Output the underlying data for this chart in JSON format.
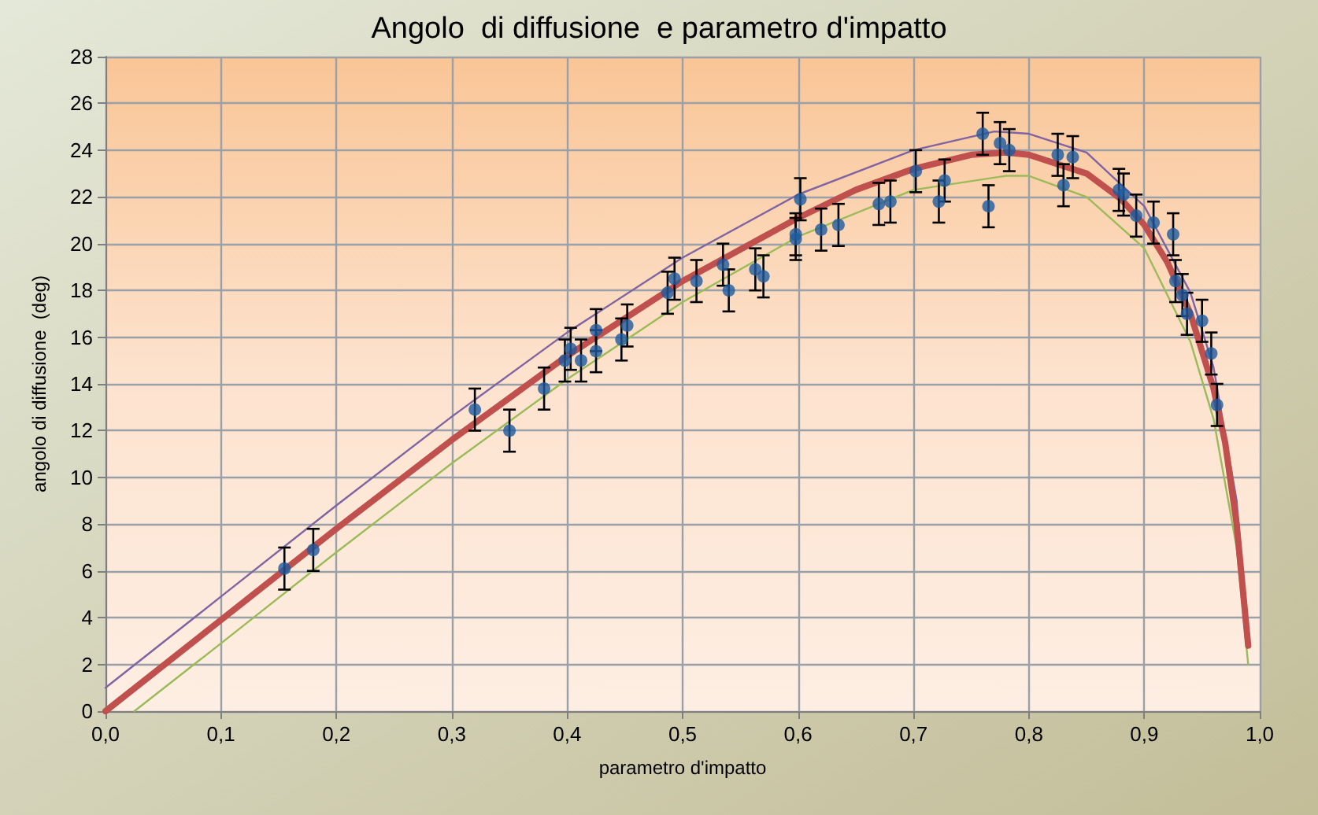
{
  "chart_data": {
    "type": "scatter",
    "title": "Angolo  di diffusione  e parametro d'impatto",
    "xlabel": "parametro d'impatto",
    "ylabel": "angolo di diffusione  (deg)",
    "xlim": [
      0,
      1
    ],
    "ylim": [
      0,
      28
    ],
    "xticks": [
      {
        "value": 0,
        "label": "0,0"
      },
      {
        "value": 0.1,
        "label": "0,1"
      },
      {
        "value": 0.2,
        "label": "0,2"
      },
      {
        "value": 0.3,
        "label": "0,3"
      },
      {
        "value": 0.4,
        "label": "0,4"
      },
      {
        "value": 0.5,
        "label": "0,5"
      },
      {
        "value": 0.6,
        "label": "0,6"
      },
      {
        "value": 0.7,
        "label": "0,7"
      },
      {
        "value": 0.8,
        "label": "0,8"
      },
      {
        "value": 0.9,
        "label": "0,9"
      },
      {
        "value": 1,
        "label": "1,0"
      }
    ],
    "yticks": [
      0,
      2,
      4,
      6,
      8,
      10,
      12,
      14,
      16,
      18,
      20,
      22,
      24,
      26,
      28
    ],
    "grid": true,
    "series": [
      {
        "type": "line",
        "color": "#8064a2",
        "marker": "none",
        "x": [
          0,
          0.1,
          0.2,
          0.3,
          0.4,
          0.5,
          0.6,
          0.7,
          0.77,
          0.8,
          0.85,
          0.9,
          0.94,
          0.96,
          0.98,
          0.99
        ],
        "values": [
          1.0,
          4.9,
          8.8,
          12.6,
          16.2,
          19.4,
          22.1,
          24.0,
          24.8,
          24.7,
          23.9,
          21.6,
          17.9,
          14.7,
          9.0,
          3.0
        ]
      },
      {
        "type": "line",
        "color": "#9bbb59",
        "marker": "none",
        "x": [
          0.025,
          0.1,
          0.2,
          0.3,
          0.4,
          0.5,
          0.6,
          0.7,
          0.78,
          0.8,
          0.85,
          0.9,
          0.94,
          0.96,
          0.98,
          0.99
        ],
        "values": [
          0,
          2.9,
          6.8,
          10.6,
          14.2,
          17.5,
          20.3,
          22.3,
          22.9,
          22.9,
          22.0,
          19.8,
          15.8,
          12.5,
          7.0,
          2.0
        ]
      },
      {
        "type": "line",
        "color": "#c0504d",
        "marker": "none",
        "x": [
          0,
          0.1,
          0.2,
          0.3,
          0.4,
          0.5,
          0.6,
          0.65,
          0.7,
          0.75,
          0.78,
          0.8,
          0.85,
          0.88,
          0.9,
          0.92,
          0.94,
          0.96,
          0.97,
          0.98,
          0.99
        ],
        "values": [
          0,
          3.9,
          7.8,
          11.6,
          15.2,
          18.4,
          21.1,
          22.3,
          23.2,
          23.8,
          23.9,
          23.8,
          23.0,
          21.9,
          20.8,
          19.2,
          17.0,
          13.8,
          11.5,
          8.0,
          2.8
        ]
      },
      {
        "color": "#1f5a9e",
        "marker": "circle",
        "x": [
          0.155,
          0.18,
          0.32,
          0.35,
          0.38,
          0.398,
          0.403,
          0.412,
          0.425,
          0.425,
          0.447,
          0.452,
          0.487,
          0.493,
          0.512,
          0.535,
          0.54,
          0.563,
          0.57,
          0.598,
          0.598,
          0.602,
          0.62,
          0.635,
          0.67,
          0.68,
          0.702,
          0.722,
          0.727,
          0.76,
          0.765,
          0.775,
          0.783,
          0.825,
          0.83,
          0.838,
          0.878,
          0.882,
          0.893,
          0.908,
          0.925,
          0.927,
          0.933,
          0.937,
          0.95,
          0.958,
          0.963
        ],
        "values": [
          6.1,
          6.9,
          12.9,
          12.0,
          13.8,
          15.0,
          15.5,
          15.0,
          15.4,
          16.3,
          15.9,
          16.5,
          17.9,
          18.5,
          18.4,
          19.1,
          18.0,
          18.9,
          18.6,
          20.2,
          20.4,
          21.9,
          20.6,
          20.8,
          21.7,
          21.8,
          23.1,
          21.8,
          22.7,
          24.7,
          21.6,
          24.3,
          24.0,
          23.8,
          22.5,
          23.7,
          22.3,
          22.1,
          21.2,
          20.9,
          20.4,
          18.4,
          17.8,
          17.0,
          16.7,
          15.3,
          13.1
        ],
        "errors": [
          0.9,
          0.9,
          0.9,
          0.9,
          0.9,
          0.9,
          0.9,
          0.9,
          0.9,
          0.9,
          0.9,
          0.9,
          0.9,
          0.9,
          0.9,
          0.9,
          0.9,
          0.9,
          0.9,
          0.9,
          0.9,
          0.9,
          0.9,
          0.9,
          0.9,
          0.9,
          0.9,
          0.9,
          0.9,
          0.9,
          0.9,
          0.9,
          0.9,
          0.9,
          0.9,
          0.9,
          0.9,
          0.9,
          0.9,
          0.9,
          0.9,
          0.9,
          0.9,
          0.9,
          0.9,
          0.9,
          0.9
        ]
      }
    ]
  }
}
